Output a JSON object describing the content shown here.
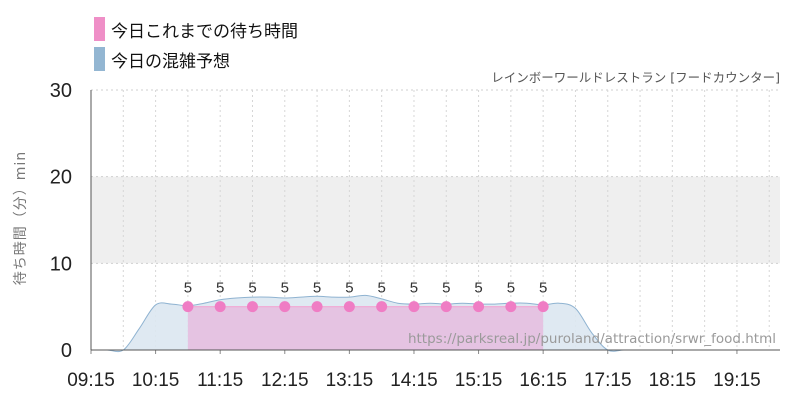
{
  "chart_data": {
    "type": "area",
    "subtitle": "レインボーワールドレストラン [フードカウンター]",
    "ylabel": "待ち時間（分）min",
    "ylim": [
      0,
      30
    ],
    "yticks": [
      "0",
      "10",
      "20",
      "30"
    ],
    "xlim": [
      "09:15",
      "19:55"
    ],
    "xticks": [
      "09:15",
      "10:15",
      "11:15",
      "12:15",
      "13:15",
      "14:15",
      "15:15",
      "16:15",
      "17:15",
      "18:15",
      "19:15"
    ],
    "grid": true,
    "shaded_band": [
      10,
      20
    ],
    "legend_position": "top-left",
    "series": [
      {
        "name": "今日これまでの待ち時間",
        "kind": "area-with-points",
        "color": "#ef7dc4",
        "fill": "#e6bfe0",
        "x": [
          "10:45",
          "11:15",
          "11:45",
          "12:15",
          "12:45",
          "13:15",
          "13:45",
          "14:15",
          "14:45",
          "15:15",
          "15:45",
          "16:15"
        ],
        "values": [
          5,
          5,
          5,
          5,
          5,
          5,
          5,
          5,
          5,
          5,
          5,
          5
        ],
        "data_labels": [
          "5",
          "5",
          "5",
          "5",
          "5",
          "5",
          "5",
          "5",
          "5",
          "5",
          "5",
          "5"
        ]
      },
      {
        "name": "今日の混雑予想",
        "kind": "area",
        "color": "#8fb3d1",
        "fill": "#dbe7f1",
        "x": [
          "09:15",
          "09:30",
          "09:45",
          "10:00",
          "10:15",
          "10:30",
          "10:45",
          "11:00",
          "11:15",
          "11:30",
          "11:45",
          "12:00",
          "12:15",
          "12:30",
          "12:45",
          "13:00",
          "13:15",
          "13:30",
          "13:45",
          "14:00",
          "14:15",
          "14:30",
          "14:45",
          "15:00",
          "15:15",
          "15:30",
          "15:45",
          "16:00",
          "16:15",
          "16:30",
          "16:45",
          "17:00",
          "17:15",
          "17:30",
          "17:45",
          "18:00",
          "18:15",
          "18:30",
          "18:45",
          "19:00",
          "19:15",
          "19:30",
          "19:45",
          "19:55"
        ],
        "values": [
          0,
          0,
          0,
          2.5,
          5.2,
          5.3,
          5.1,
          5.4,
          5.8,
          6.0,
          6.1,
          6.1,
          6.0,
          6.1,
          6.2,
          6.1,
          6.1,
          6.3,
          5.9,
          5.4,
          5.3,
          5.4,
          5.3,
          5.4,
          5.3,
          5.3,
          5.4,
          5.4,
          5.2,
          5.4,
          4.8,
          2.0,
          0,
          0,
          0,
          0,
          0,
          0,
          0,
          0,
          0,
          0,
          0,
          0
        ]
      }
    ],
    "watermark": "https://parksreal.jp/puroland/attraction/srwr_food.html"
  }
}
